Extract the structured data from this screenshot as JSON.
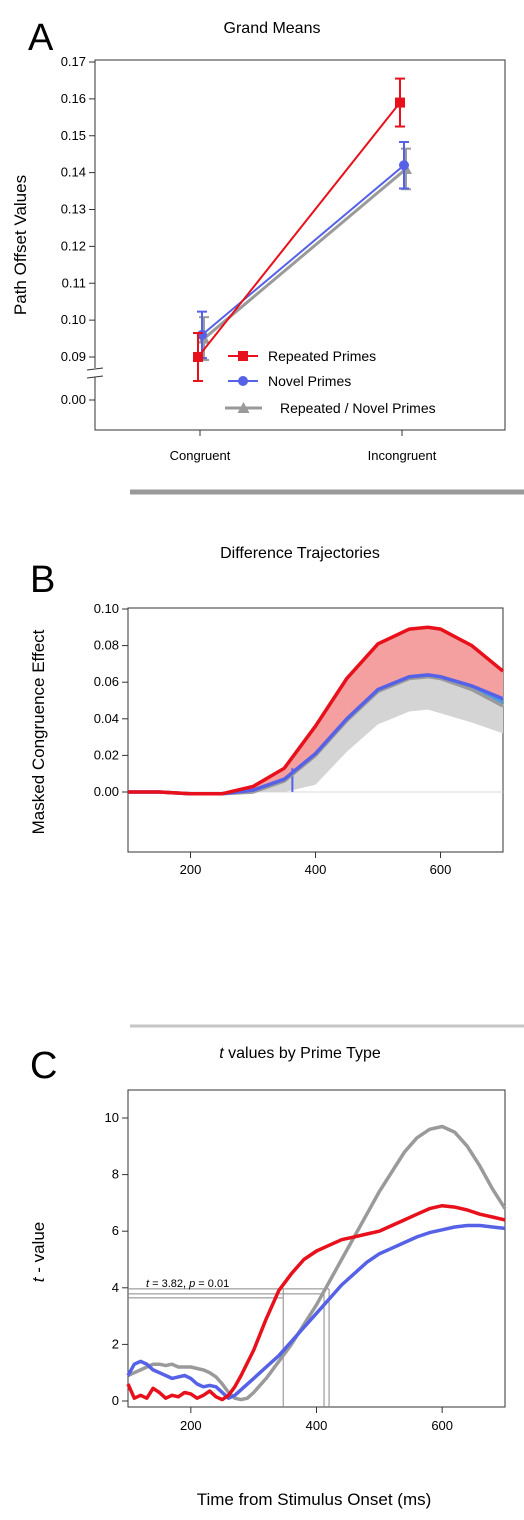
{
  "panels": {
    "a": {
      "letter": "A",
      "title": "Grand Means",
      "ylabel": "Path Offset Values"
    },
    "b": {
      "letter": "B",
      "title": "Difference Trajectories",
      "ylabel": "Masked Congruence Effect"
    },
    "c": {
      "letter": "C",
      "title_italic": "t",
      "title_rest": " values by Prime Type",
      "ylabel_italic": "t",
      "ylabel_rest": " - value",
      "xlabel": "Time from Stimulus Onset (ms)",
      "annotation": {
        "t_label": "t",
        "t_value": " = 3.82,",
        "p_label": "p",
        "p_value": " = 0.01"
      }
    }
  },
  "colors": {
    "repeated": "#e8101a",
    "novel": "#5561e6",
    "combined": "#9a9a9a",
    "repeated_band": "#f4a0a0",
    "novel_band": "#4a9ae6",
    "combined_band": "#d4d4d4",
    "separator": "#9a9a9a"
  },
  "chart_data": [
    {
      "type": "line",
      "title": "Grand Means",
      "ylabel": "Path Offset Values",
      "categories": [
        "Congruent",
        "Incongruent"
      ],
      "y_ticks": [
        "0.00",
        "0.09",
        "0.10",
        "0.11",
        "0.12",
        "0.13",
        "0.14",
        "0.15",
        "0.16",
        "0.17"
      ],
      "axis_break": true,
      "ylim": [
        0.09,
        0.17
      ],
      "series": [
        {
          "name": "Repeated Primes",
          "marker": "square",
          "values": [
            0.09,
            0.159
          ],
          "error": [
            0.0065,
            0.0065
          ]
        },
        {
          "name": "Novel Primes",
          "marker": "circle",
          "values": [
            0.096,
            0.142
          ],
          "error": [
            0.0063,
            0.0063
          ]
        },
        {
          "name": "Repeated / Novel Primes",
          "marker": "triangle",
          "values": [
            0.095,
            0.141
          ],
          "error": [
            0.0058,
            0.0055
          ]
        }
      ],
      "legend_position": "bottom-right"
    },
    {
      "type": "area",
      "title": "Difference Trajectories",
      "ylabel": "Masked Congruence Effect",
      "xlim": [
        100,
        700
      ],
      "ylim": [
        -0.01,
        0.1
      ],
      "x_ticks": [
        "200",
        "400",
        "600"
      ],
      "y_ticks": [
        "0.00",
        "0.02",
        "0.04",
        "0.06",
        "0.08",
        "0.10"
      ],
      "x": [
        100,
        150,
        200,
        250,
        300,
        350,
        400,
        450,
        500,
        550,
        580,
        600,
        650,
        700
      ],
      "series": [
        {
          "color": "repeated",
          "values": [
            0.0,
            0.0,
            -0.001,
            -0.001,
            0.003,
            0.013,
            0.036,
            0.062,
            0.081,
            0.089,
            0.09,
            0.089,
            0.08,
            0.066
          ],
          "lower": [
            0.0,
            0.0,
            -0.001,
            -0.001,
            0.001,
            0.007,
            0.021,
            0.04,
            0.056,
            0.063,
            0.064,
            0.063,
            0.058,
            0.051
          ]
        },
        {
          "color": "novel",
          "values": [
            0.0,
            0.0,
            -0.001,
            -0.001,
            0.001,
            0.007,
            0.021,
            0.04,
            0.056,
            0.063,
            0.064,
            0.063,
            0.058,
            0.051
          ],
          "lower": [
            0.0,
            0.0,
            -0.001,
            -0.001,
            0.0,
            0.0,
            0.006,
            0.024,
            0.04,
            0.047,
            0.048,
            0.046,
            0.04,
            0.034
          ]
        },
        {
          "color": "combined",
          "values": [
            0.0,
            0.0,
            -0.001,
            -0.001,
            0.0,
            0.006,
            0.02,
            0.039,
            0.055,
            0.062,
            0.063,
            0.062,
            0.056,
            0.047
          ],
          "lower": [
            0.0,
            0.0,
            -0.001,
            -0.001,
            0.0,
            0.0,
            0.004,
            0.022,
            0.037,
            0.044,
            0.045,
            0.043,
            0.038,
            0.032
          ]
        }
      ],
      "vertical_marks": [
        {
          "x": 363,
          "color": "novel"
        }
      ]
    },
    {
      "type": "line",
      "title": "t values by Prime Type",
      "xlabel": "Time from Stimulus Onset (ms)",
      "ylabel": "t - value",
      "xlim": [
        100,
        700
      ],
      "ylim": [
        -0.2,
        10
      ],
      "x_ticks": [
        "200",
        "400",
        "600"
      ],
      "y_ticks": [
        "0",
        "2",
        "4",
        "6",
        "8",
        "10"
      ],
      "series": [
        {
          "color": "repeated",
          "x": [
            100,
            110,
            120,
            130,
            140,
            150,
            160,
            170,
            180,
            190,
            200,
            210,
            220,
            230,
            240,
            250,
            260,
            270,
            280,
            300,
            320,
            340,
            360,
            380,
            400,
            420,
            440,
            460,
            480,
            500,
            520,
            540,
            560,
            580,
            600,
            620,
            640,
            660,
            680,
            700
          ],
          "values": [
            0.6,
            0.1,
            0.2,
            0.1,
            0.45,
            0.3,
            0.1,
            0.2,
            0.15,
            0.3,
            0.25,
            0.1,
            0.2,
            0.35,
            0.15,
            0.05,
            0.2,
            0.5,
            0.9,
            1.8,
            2.9,
            3.9,
            4.5,
            5.0,
            5.3,
            5.5,
            5.7,
            5.8,
            5.9,
            6.0,
            6.2,
            6.4,
            6.6,
            6.8,
            6.9,
            6.85,
            6.75,
            6.6,
            6.5,
            6.4
          ]
        },
        {
          "color": "novel",
          "x": [
            100,
            110,
            120,
            130,
            140,
            150,
            160,
            170,
            180,
            190,
            200,
            210,
            220,
            230,
            240,
            250,
            260,
            270,
            280,
            300,
            320,
            340,
            360,
            380,
            400,
            420,
            440,
            460,
            480,
            500,
            520,
            540,
            560,
            580,
            600,
            620,
            640,
            660,
            680,
            700
          ],
          "values": [
            0.9,
            1.3,
            1.4,
            1.3,
            1.1,
            1.0,
            0.9,
            0.8,
            0.85,
            0.9,
            0.8,
            0.6,
            0.5,
            0.55,
            0.5,
            0.3,
            0.1,
            0.2,
            0.4,
            0.8,
            1.2,
            1.6,
            2.1,
            2.6,
            3.1,
            3.6,
            4.1,
            4.5,
            4.9,
            5.2,
            5.4,
            5.6,
            5.8,
            5.95,
            6.05,
            6.15,
            6.2,
            6.2,
            6.15,
            6.1
          ]
        },
        {
          "color": "combined",
          "x": [
            100,
            110,
            120,
            130,
            140,
            150,
            160,
            170,
            180,
            190,
            200,
            210,
            220,
            230,
            240,
            250,
            260,
            270,
            280,
            290,
            300,
            320,
            340,
            360,
            380,
            400,
            420,
            440,
            460,
            480,
            500,
            520,
            540,
            560,
            580,
            600,
            620,
            640,
            660,
            680,
            700
          ],
          "values": [
            0.9,
            1.0,
            1.1,
            1.2,
            1.3,
            1.3,
            1.25,
            1.3,
            1.2,
            1.2,
            1.2,
            1.15,
            1.1,
            1.0,
            0.85,
            0.6,
            0.3,
            0.1,
            0.05,
            0.1,
            0.3,
            0.8,
            1.4,
            2.0,
            2.7,
            3.4,
            4.2,
            5.0,
            5.8,
            6.6,
            7.4,
            8.1,
            8.8,
            9.3,
            9.6,
            9.7,
            9.5,
            9.0,
            8.3,
            7.5,
            6.8
          ]
        }
      ],
      "threshold": {
        "t": 3.82,
        "p": 0.01
      },
      "crossing_marks": [
        {
          "x": 347,
          "color": "repeated"
        },
        {
          "x": 412,
          "color": "novel"
        },
        {
          "x": 420,
          "color": "combined"
        }
      ]
    }
  ]
}
